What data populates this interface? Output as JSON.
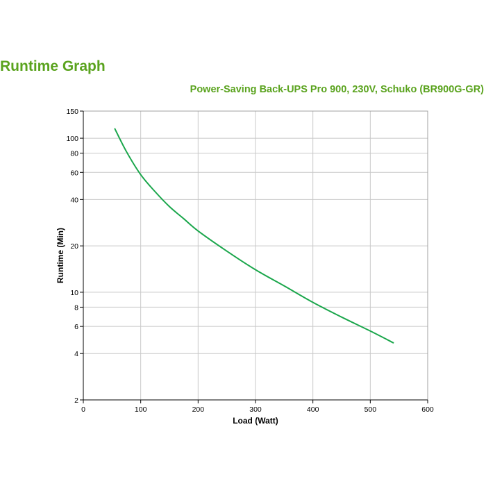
{
  "page": {
    "title": "Runtime Graph"
  },
  "colors": {
    "accent": "#5aa31e",
    "series_line": "#1aa64b",
    "grid": "#c8c8c8"
  },
  "chart_data": {
    "type": "line",
    "title": "Power-Saving Back-UPS Pro 900, 230V, Schuko (BR900G-GR)",
    "xlabel": "Load (Watt)",
    "ylabel": "Runtime (Min)",
    "xlim": [
      0,
      600
    ],
    "ylim": [
      2,
      150
    ],
    "yscale": "log",
    "grid": true,
    "x_ticks": [
      0,
      100,
      200,
      300,
      400,
      500,
      600
    ],
    "y_ticks": [
      2,
      4,
      6,
      8,
      10,
      20,
      40,
      60,
      80,
      100,
      150
    ],
    "series": [
      {
        "x": [
          55,
          75,
          100,
          125,
          150,
          175,
          200,
          250,
          300,
          350,
          400,
          450,
          500,
          540
        ],
        "y": [
          115,
          82,
          58,
          45,
          36,
          30,
          25,
          18.5,
          14,
          11,
          8.6,
          6.9,
          5.6,
          4.7
        ]
      }
    ]
  }
}
